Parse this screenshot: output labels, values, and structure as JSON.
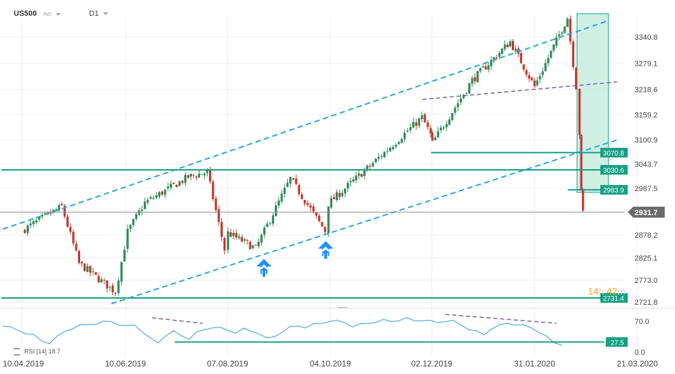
{
  "header": {
    "symbol": "US500",
    "instrument_class": "IND",
    "timeframe": "D1"
  },
  "timer": {
    "h": "14",
    "h_unit": "h",
    "m": "42",
    "m_unit": "m"
  },
  "rsi_legend": {
    "name": "RSI",
    "period": "[14]",
    "value": "18.7"
  },
  "colors": {
    "up": "#2e8b57",
    "down": "#c0392b",
    "level_line": "#16a085",
    "channel_line": "#2aa6e0",
    "trend_line": "#7b5ea7",
    "rsi_line": "#2b9be0",
    "price_badge": "#6b6b6b",
    "arrow": "#1e90ff",
    "zone_fill": "#bfead9"
  },
  "chart_data": {
    "type": "candlestick",
    "symbol": "US500",
    "timeframe": "D1",
    "y_range": [
      2700,
      3395
    ],
    "y_ticks": [
      3340.8,
      3279.1,
      3218.6,
      3159.2,
      3100.9,
      3043.7,
      2987.5,
      2878.2,
      2825.1,
      2773.0,
      2721.8
    ],
    "x_ticks": [
      "10.04.2019",
      "10.06.2019",
      "07.08.2019",
      "04.10.2019",
      "02.12.2019",
      "31.01.2020",
      "21.03.2020"
    ],
    "close_series": [
      {
        "date": "10.04.2019",
        "close": 2888
      },
      {
        "date": "25.04.2019",
        "close": 2926
      },
      {
        "date": "03.05.2019",
        "close": 2945
      },
      {
        "date": "13.05.2019",
        "close": 2812
      },
      {
        "date": "03.06.2019",
        "close": 2745
      },
      {
        "date": "10.06.2019",
        "close": 2886
      },
      {
        "date": "20.06.2019",
        "close": 2954
      },
      {
        "date": "15.07.2019",
        "close": 3014
      },
      {
        "date": "26.07.2019",
        "close": 3025
      },
      {
        "date": "05.08.2019",
        "close": 2845
      },
      {
        "date": "07.08.2019",
        "close": 2883
      },
      {
        "date": "23.08.2019",
        "close": 2847
      },
      {
        "date": "12.09.2019",
        "close": 3010
      },
      {
        "date": "02.10.2019",
        "close": 2888
      },
      {
        "date": "04.10.2019",
        "close": 2952
      },
      {
        "date": "28.10.2019",
        "close": 3040
      },
      {
        "date": "27.11.2019",
        "close": 3153
      },
      {
        "date": "02.12.2019",
        "close": 3113
      },
      {
        "date": "03.12.2019",
        "close": 3093
      },
      {
        "date": "26.12.2019",
        "close": 3240
      },
      {
        "date": "17.01.2020",
        "close": 3330
      },
      {
        "date": "31.01.2020",
        "close": 3225
      },
      {
        "date": "19.02.2020",
        "close": 3386
      },
      {
        "date": "24.02.2020",
        "close": 3225
      },
      {
        "date": "26.02.2020",
        "close": 3116
      },
      {
        "date": "27.02.2020",
        "close": 2978
      },
      {
        "date": "28.02.2020",
        "close": 2931.7
      }
    ],
    "current_price": 2931.7,
    "levels": [
      3070.8,
      3030.6,
      2983.9,
      2731.4
    ],
    "annotations": [
      "uptrend channel (dashed)",
      "two buy arrows near channel support",
      "shaded selloff zone"
    ],
    "rsi": {
      "period": 14,
      "current": 18.7,
      "y_ticks": [
        70.0,
        0.0
      ],
      "level_marker": 27.5,
      "values": [
        62,
        55,
        50,
        44,
        38,
        26,
        22,
        34,
        48,
        56,
        60,
        63,
        66,
        68,
        70,
        64,
        58,
        62,
        48,
        30,
        22,
        40,
        46,
        38,
        32,
        44,
        52,
        58,
        54,
        50,
        46,
        52,
        48,
        44,
        30,
        36,
        48,
        56,
        60,
        58,
        62,
        66,
        72,
        70,
        68,
        60,
        62,
        66,
        70,
        72,
        70,
        74,
        76,
        72,
        74,
        70,
        68,
        72,
        70,
        62,
        54,
        46,
        40,
        56,
        60,
        66,
        64,
        60,
        56,
        48,
        34,
        22,
        18.7
      ]
    }
  }
}
